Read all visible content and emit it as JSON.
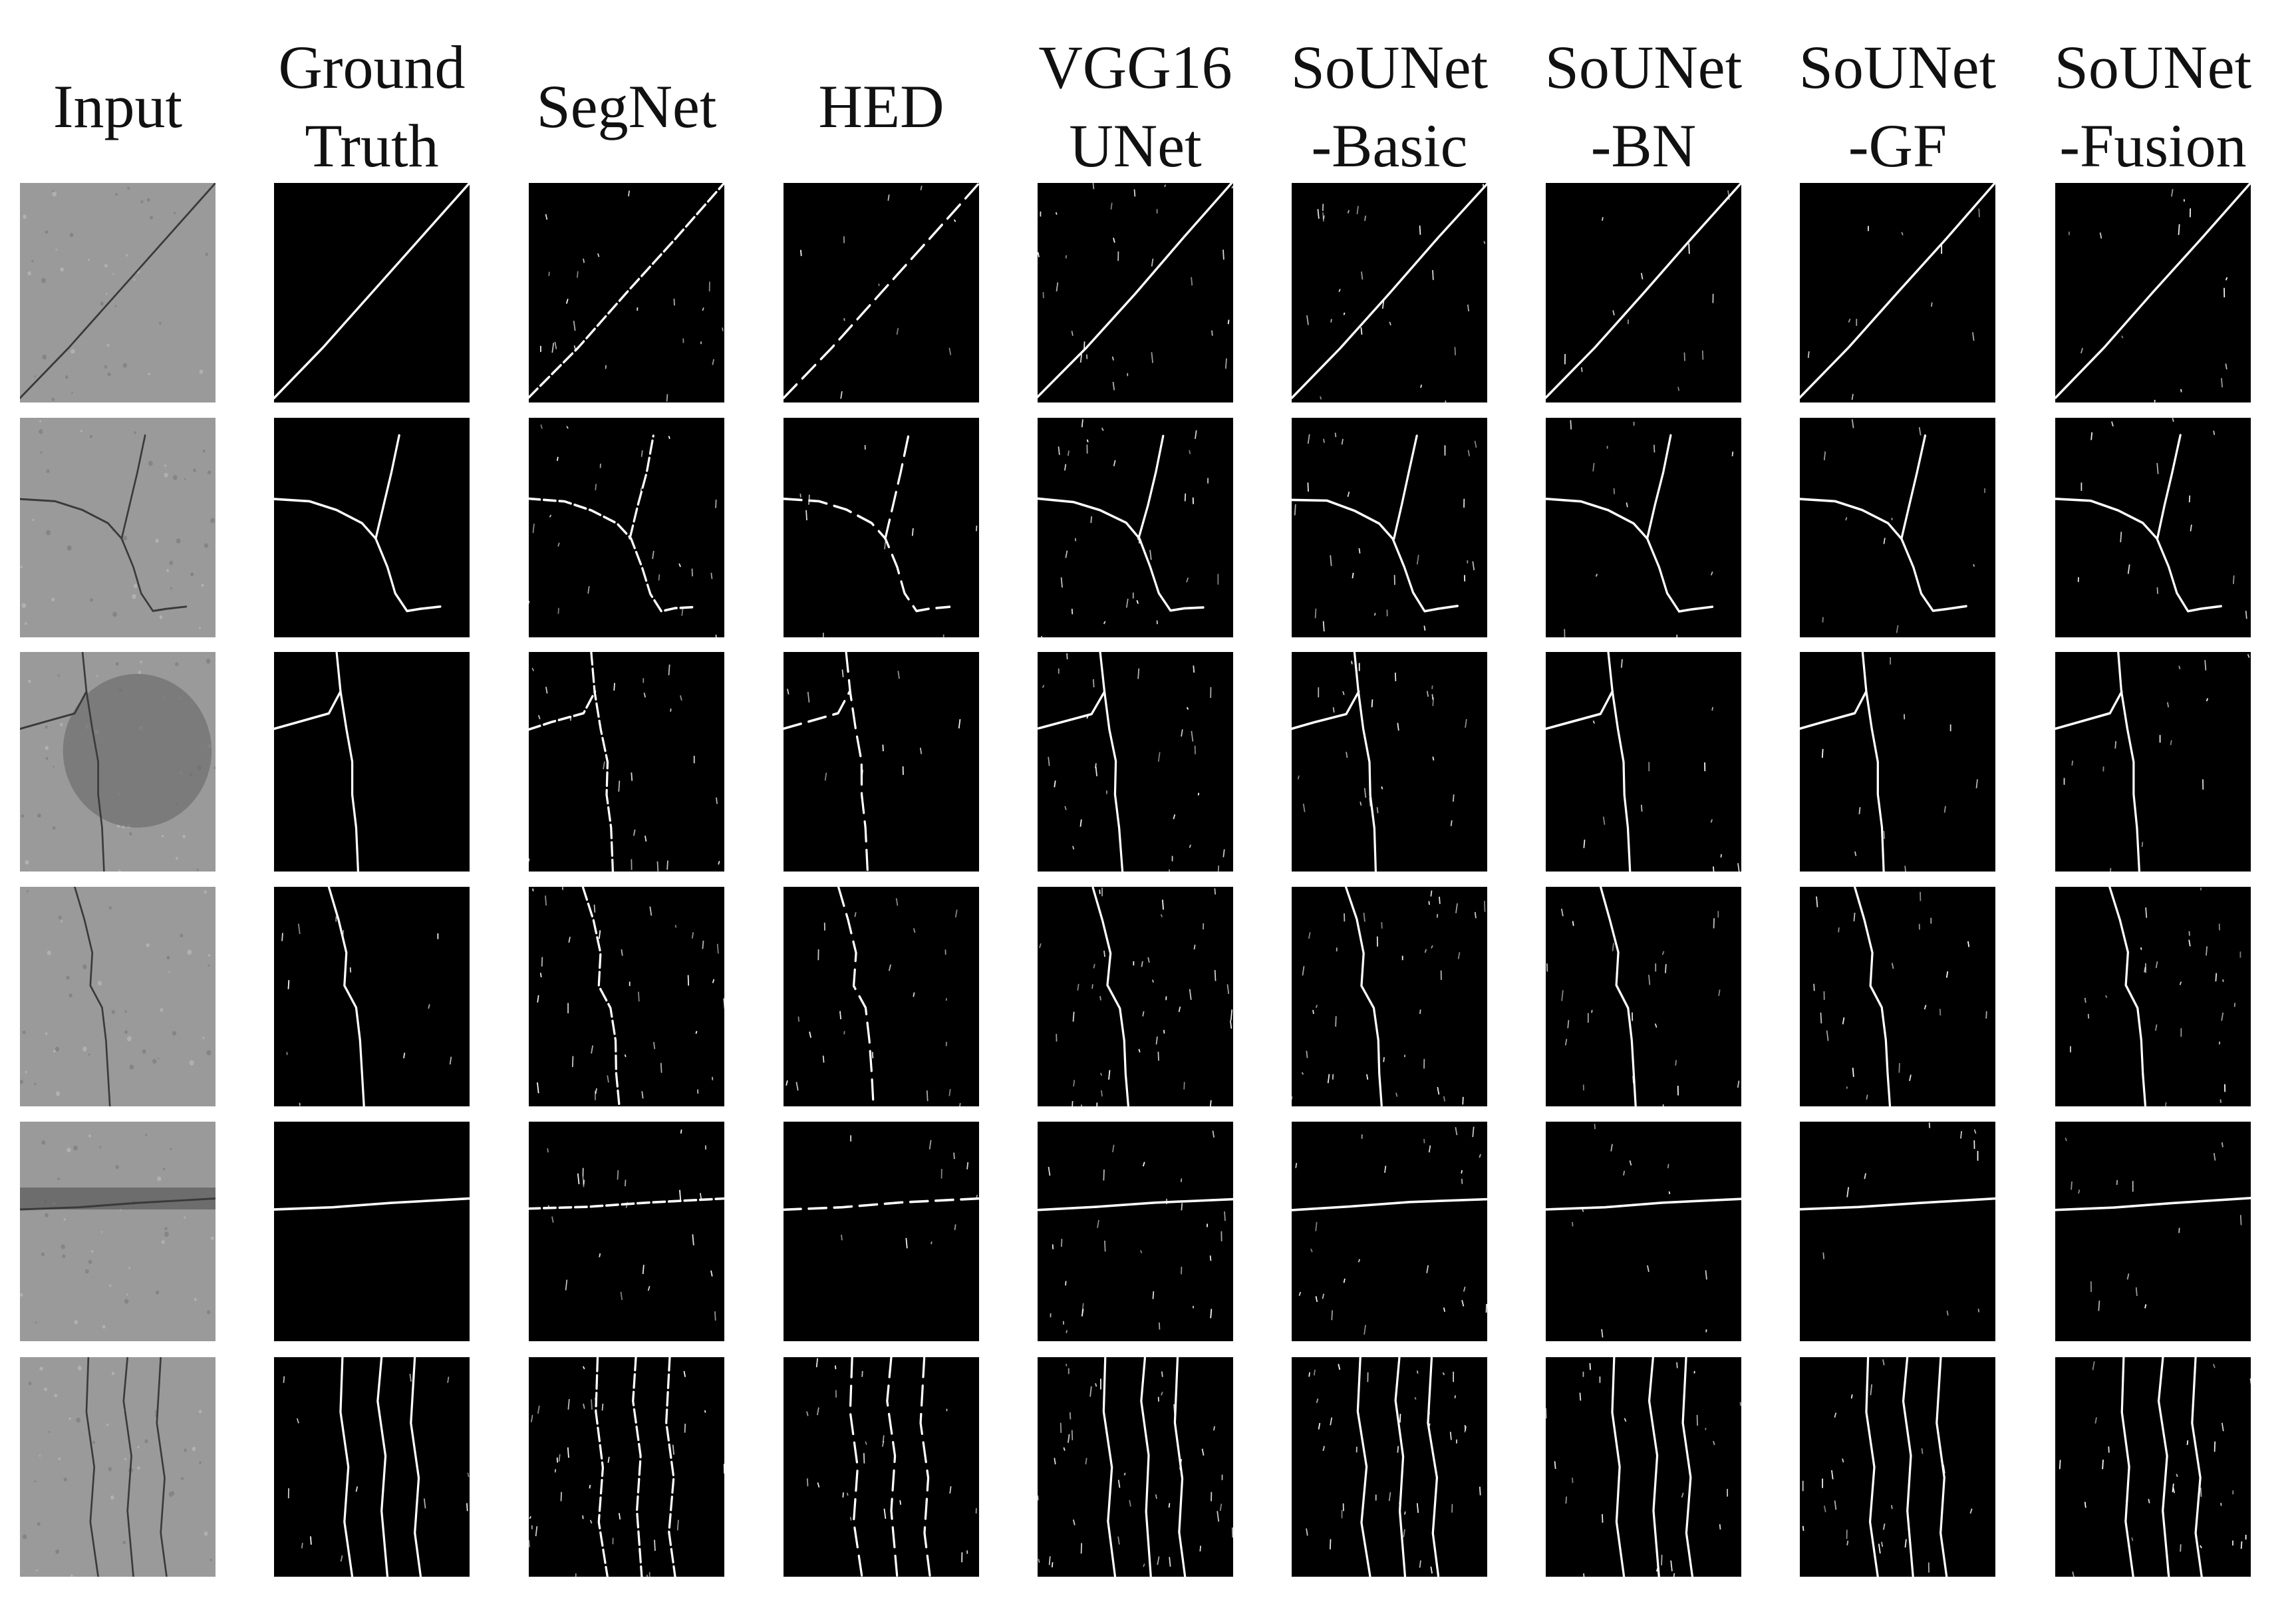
{
  "figure": {
    "columns": [
      {
        "key": "input",
        "lines": [
          "Input"
        ]
      },
      {
        "key": "ground-truth",
        "lines": [
          "Ground",
          "Truth"
        ]
      },
      {
        "key": "segnet",
        "lines": [
          "SegNet"
        ]
      },
      {
        "key": "hed",
        "lines": [
          "HED"
        ]
      },
      {
        "key": "vgg16-unet",
        "lines": [
          "VGG16",
          "UNet"
        ]
      },
      {
        "key": "sounet-basic",
        "lines": [
          "SoUNet",
          "-Basic"
        ]
      },
      {
        "key": "sounet-bn",
        "lines": [
          "SoUNet",
          "-BN"
        ]
      },
      {
        "key": "sounet-gf",
        "lines": [
          "SoUNet",
          "-GF"
        ]
      },
      {
        "key": "sounet-fusion",
        "lines": [
          "SoUNet",
          "-Fusion"
        ]
      }
    ],
    "rows": [
      {
        "key": "diagonal-crack"
      },
      {
        "key": "branching-crack"
      },
      {
        "key": "vertical-crack-stain"
      },
      {
        "key": "vertical-crack-pit"
      },
      {
        "key": "horizontal-crack"
      },
      {
        "key": "multiple-vertical-cracks"
      }
    ],
    "colors": {
      "input_surface": "#9a9a9a",
      "input_crack": "#3a3a3a",
      "prediction_background": "#000000",
      "prediction_crack": "#ffffff",
      "header_text": "#111111"
    }
  }
}
